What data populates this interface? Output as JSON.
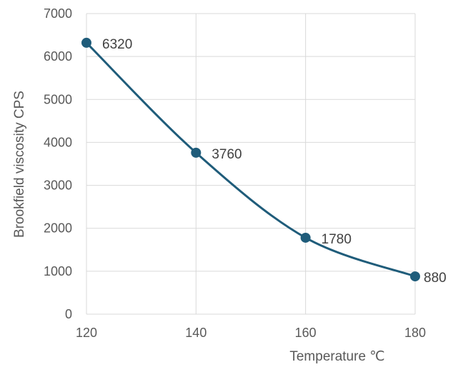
{
  "chart_data": {
    "type": "line",
    "title": "",
    "xlabel": "Temperature ℃",
    "ylabel": "Brookfield viscosity CPS",
    "x": [
      120,
      140,
      160,
      180
    ],
    "xlim": [
      120,
      180
    ],
    "xticks": [
      120,
      140,
      160,
      180
    ],
    "ylim": [
      0,
      7000
    ],
    "yticks": [
      0,
      1000,
      2000,
      3000,
      4000,
      5000,
      6000,
      7000
    ],
    "grid": true,
    "smooth": true,
    "legend": "none",
    "series": [
      {
        "values": [
          6320,
          3760,
          1780,
          880
        ],
        "data_labels": [
          "6320",
          "3760",
          "1780",
          "880"
        ],
        "color": "#1f5c7a"
      }
    ]
  }
}
